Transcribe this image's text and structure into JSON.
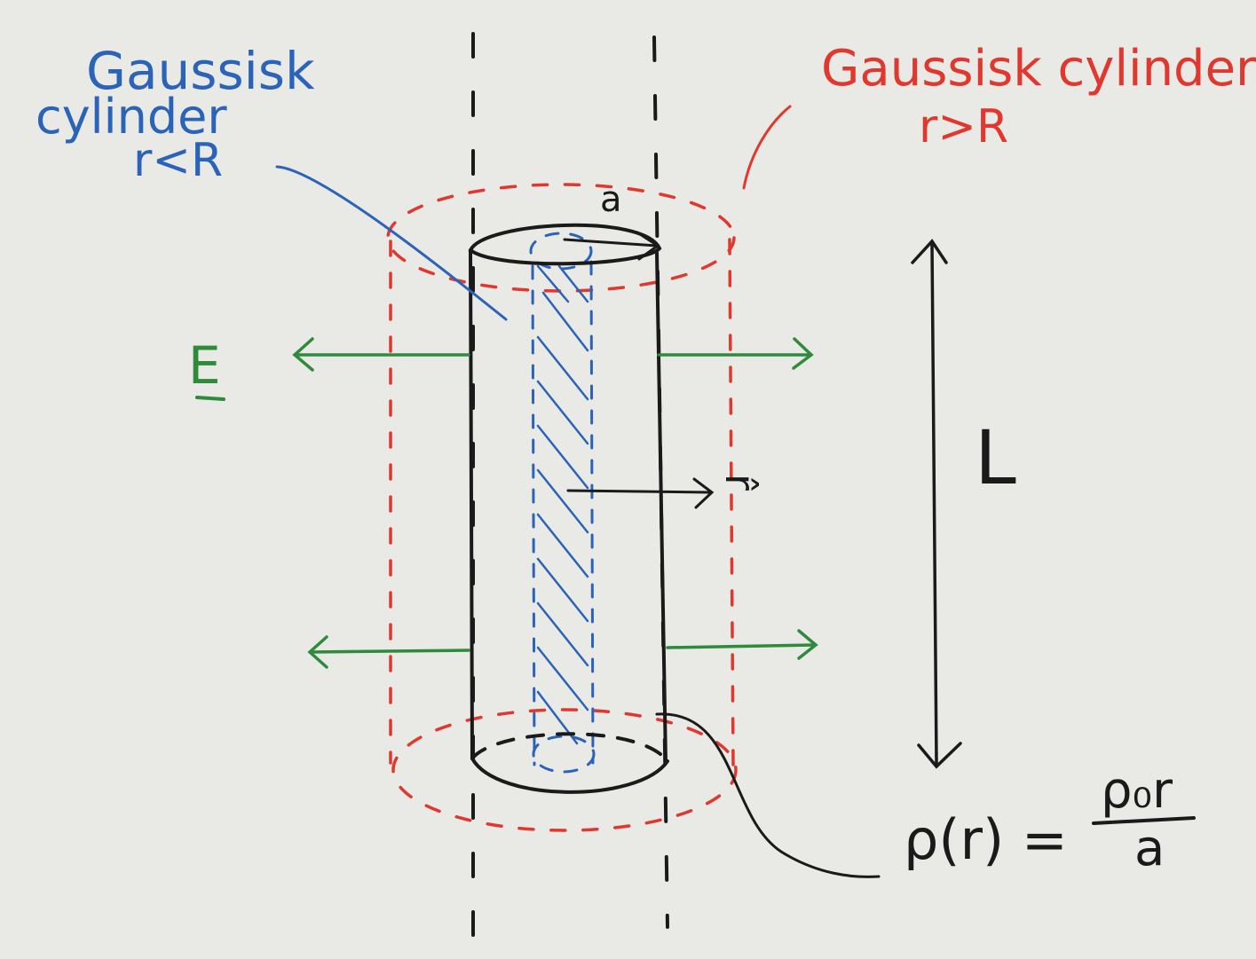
{
  "labels": {
    "inner_title": "Gaussisk",
    "inner_subtitle": "cylinder",
    "inner_condition": "r<R",
    "outer_title": "Gaussisk cylinder",
    "outer_condition": "r>R",
    "radius_label": "a",
    "field_label": "E",
    "unit_vector_label": "r̂",
    "length_label": "L",
    "density_lhs": "ρ(r) =",
    "density_numerator": "ρ₀r",
    "density_denominator": "a"
  },
  "colors": {
    "paper": "#e9e9e6",
    "ink_black": "#1a1a1a",
    "inner_blue": "#2a63b8",
    "outer_red": "#e0382e",
    "field_green": "#2f8a3c"
  }
}
